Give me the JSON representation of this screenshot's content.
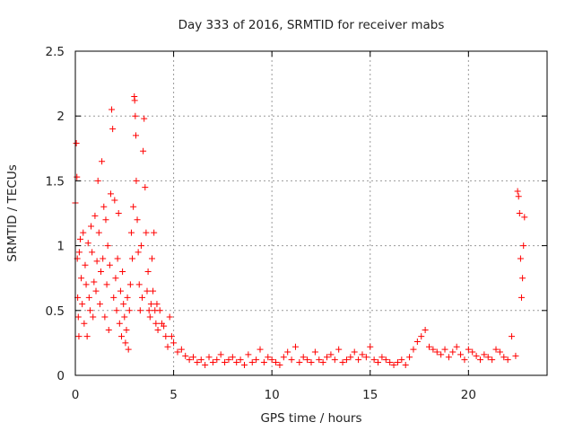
{
  "chart_data": {
    "type": "scatter",
    "title": "Day 333 of 2016, SRMTID for receiver mabs",
    "xlabel": "GPS time / hours",
    "ylabel": "SRMTID / TECUs",
    "xlim": [
      0,
      24
    ],
    "ylim": [
      0,
      2.5
    ],
    "xticks": [
      0,
      5,
      10,
      15,
      20
    ],
    "yticks": [
      0,
      0.5,
      1,
      1.5,
      2,
      2.5
    ],
    "xtick_labels": [
      "0",
      "5",
      "10",
      "15",
      "20"
    ],
    "ytick_labels": [
      "0",
      "0.5",
      "1",
      "1.5",
      "2",
      "2.5"
    ],
    "grid": true,
    "marker": "+",
    "series": [
      {
        "name": "SRMTID",
        "color": "#ff0000",
        "x": [
          0.0,
          0.05,
          0.08,
          0.1,
          0.12,
          0.15,
          0.18,
          0.2,
          0.25,
          0.3,
          0.35,
          0.4,
          0.45,
          0.5,
          0.55,
          0.6,
          0.65,
          0.7,
          0.75,
          0.8,
          0.85,
          0.9,
          0.95,
          1.0,
          1.05,
          1.1,
          1.15,
          1.2,
          1.25,
          1.3,
          1.35,
          1.4,
          1.45,
          1.5,
          1.55,
          1.6,
          1.65,
          1.7,
          1.75,
          1.8,
          1.85,
          1.9,
          1.95,
          2.0,
          2.05,
          2.1,
          2.15,
          2.2,
          2.25,
          2.3,
          2.35,
          2.4,
          2.45,
          2.5,
          2.55,
          2.6,
          2.65,
          2.7,
          2.75,
          2.8,
          2.85,
          2.9,
          2.95,
          3.0,
          3.02,
          3.05,
          3.08,
          3.1,
          3.15,
          3.2,
          3.25,
          3.3,
          3.35,
          3.4,
          3.45,
          3.5,
          3.55,
          3.6,
          3.65,
          3.7,
          3.75,
          3.8,
          3.85,
          3.9,
          3.95,
          4.0,
          4.05,
          4.1,
          4.15,
          4.2,
          4.3,
          4.4,
          4.5,
          4.6,
          4.7,
          4.8,
          4.9,
          5.0,
          5.2,
          5.4,
          5.6,
          5.8,
          6.0,
          6.2,
          6.4,
          6.6,
          6.8,
          7.0,
          7.2,
          7.4,
          7.6,
          7.8,
          8.0,
          8.2,
          8.4,
          8.6,
          8.8,
          9.0,
          9.2,
          9.4,
          9.6,
          9.8,
          10.0,
          10.2,
          10.4,
          10.6,
          10.8,
          11.0,
          11.2,
          11.4,
          11.6,
          11.8,
          12.0,
          12.2,
          12.4,
          12.6,
          12.8,
          13.0,
          13.2,
          13.4,
          13.6,
          13.8,
          14.0,
          14.2,
          14.4,
          14.6,
          14.8,
          15.0,
          15.2,
          15.4,
          15.6,
          15.8,
          16.0,
          16.2,
          16.4,
          16.6,
          16.8,
          17.0,
          17.2,
          17.4,
          17.6,
          17.8,
          18.0,
          18.2,
          18.4,
          18.6,
          18.8,
          19.0,
          19.2,
          19.4,
          19.6,
          19.8,
          20.0,
          20.2,
          20.4,
          20.6,
          20.8,
          21.0,
          21.2,
          21.4,
          21.6,
          21.8,
          22.0,
          22.2,
          22.4,
          22.5,
          22.55,
          22.6,
          22.65,
          22.7,
          22.75,
          22.8,
          22.85
        ],
        "y": [
          1.33,
          1.79,
          1.53,
          0.9,
          0.6,
          0.45,
          0.3,
          0.95,
          1.05,
          0.75,
          0.55,
          1.1,
          0.4,
          0.85,
          0.7,
          0.3,
          1.02,
          0.6,
          0.5,
          1.15,
          0.95,
          0.45,
          0.72,
          1.23,
          0.65,
          0.88,
          1.5,
          1.1,
          0.55,
          0.8,
          1.65,
          0.9,
          1.3,
          0.45,
          1.2,
          0.7,
          1.0,
          0.35,
          0.85,
          1.4,
          2.05,
          1.9,
          0.6,
          1.35,
          0.75,
          0.5,
          0.9,
          1.25,
          0.4,
          0.65,
          0.3,
          0.8,
          0.55,
          0.45,
          0.25,
          0.35,
          0.6,
          0.2,
          0.5,
          0.7,
          1.1,
          0.9,
          1.3,
          2.15,
          2.12,
          2.0,
          1.85,
          1.5,
          1.2,
          0.95,
          0.7,
          0.5,
          1.0,
          0.6,
          1.73,
          1.98,
          1.45,
          1.1,
          0.65,
          0.8,
          0.5,
          0.45,
          0.55,
          0.9,
          0.65,
          1.1,
          0.5,
          0.4,
          0.55,
          0.35,
          0.5,
          0.4,
          0.38,
          0.3,
          0.22,
          0.45,
          0.3,
          0.25,
          0.18,
          0.2,
          0.15,
          0.12,
          0.14,
          0.1,
          0.12,
          0.08,
          0.14,
          0.1,
          0.12,
          0.16,
          0.1,
          0.12,
          0.14,
          0.1,
          0.12,
          0.08,
          0.16,
          0.1,
          0.12,
          0.2,
          0.1,
          0.14,
          0.12,
          0.1,
          0.08,
          0.14,
          0.18,
          0.12,
          0.22,
          0.1,
          0.14,
          0.12,
          0.1,
          0.18,
          0.12,
          0.1,
          0.14,
          0.16,
          0.12,
          0.2,
          0.1,
          0.12,
          0.14,
          0.18,
          0.12,
          0.16,
          0.14,
          0.22,
          0.12,
          0.1,
          0.14,
          0.12,
          0.1,
          0.08,
          0.1,
          0.12,
          0.08,
          0.14,
          0.2,
          0.26,
          0.3,
          0.35,
          0.22,
          0.2,
          0.18,
          0.16,
          0.2,
          0.14,
          0.18,
          0.22,
          0.16,
          0.12,
          0.2,
          0.18,
          0.15,
          0.12,
          0.16,
          0.14,
          0.12,
          0.2,
          0.18,
          0.14,
          0.12,
          0.3,
          0.15,
          1.42,
          1.38,
          1.25,
          0.9,
          0.6,
          0.75,
          1.0,
          1.22
        ]
      }
    ]
  }
}
